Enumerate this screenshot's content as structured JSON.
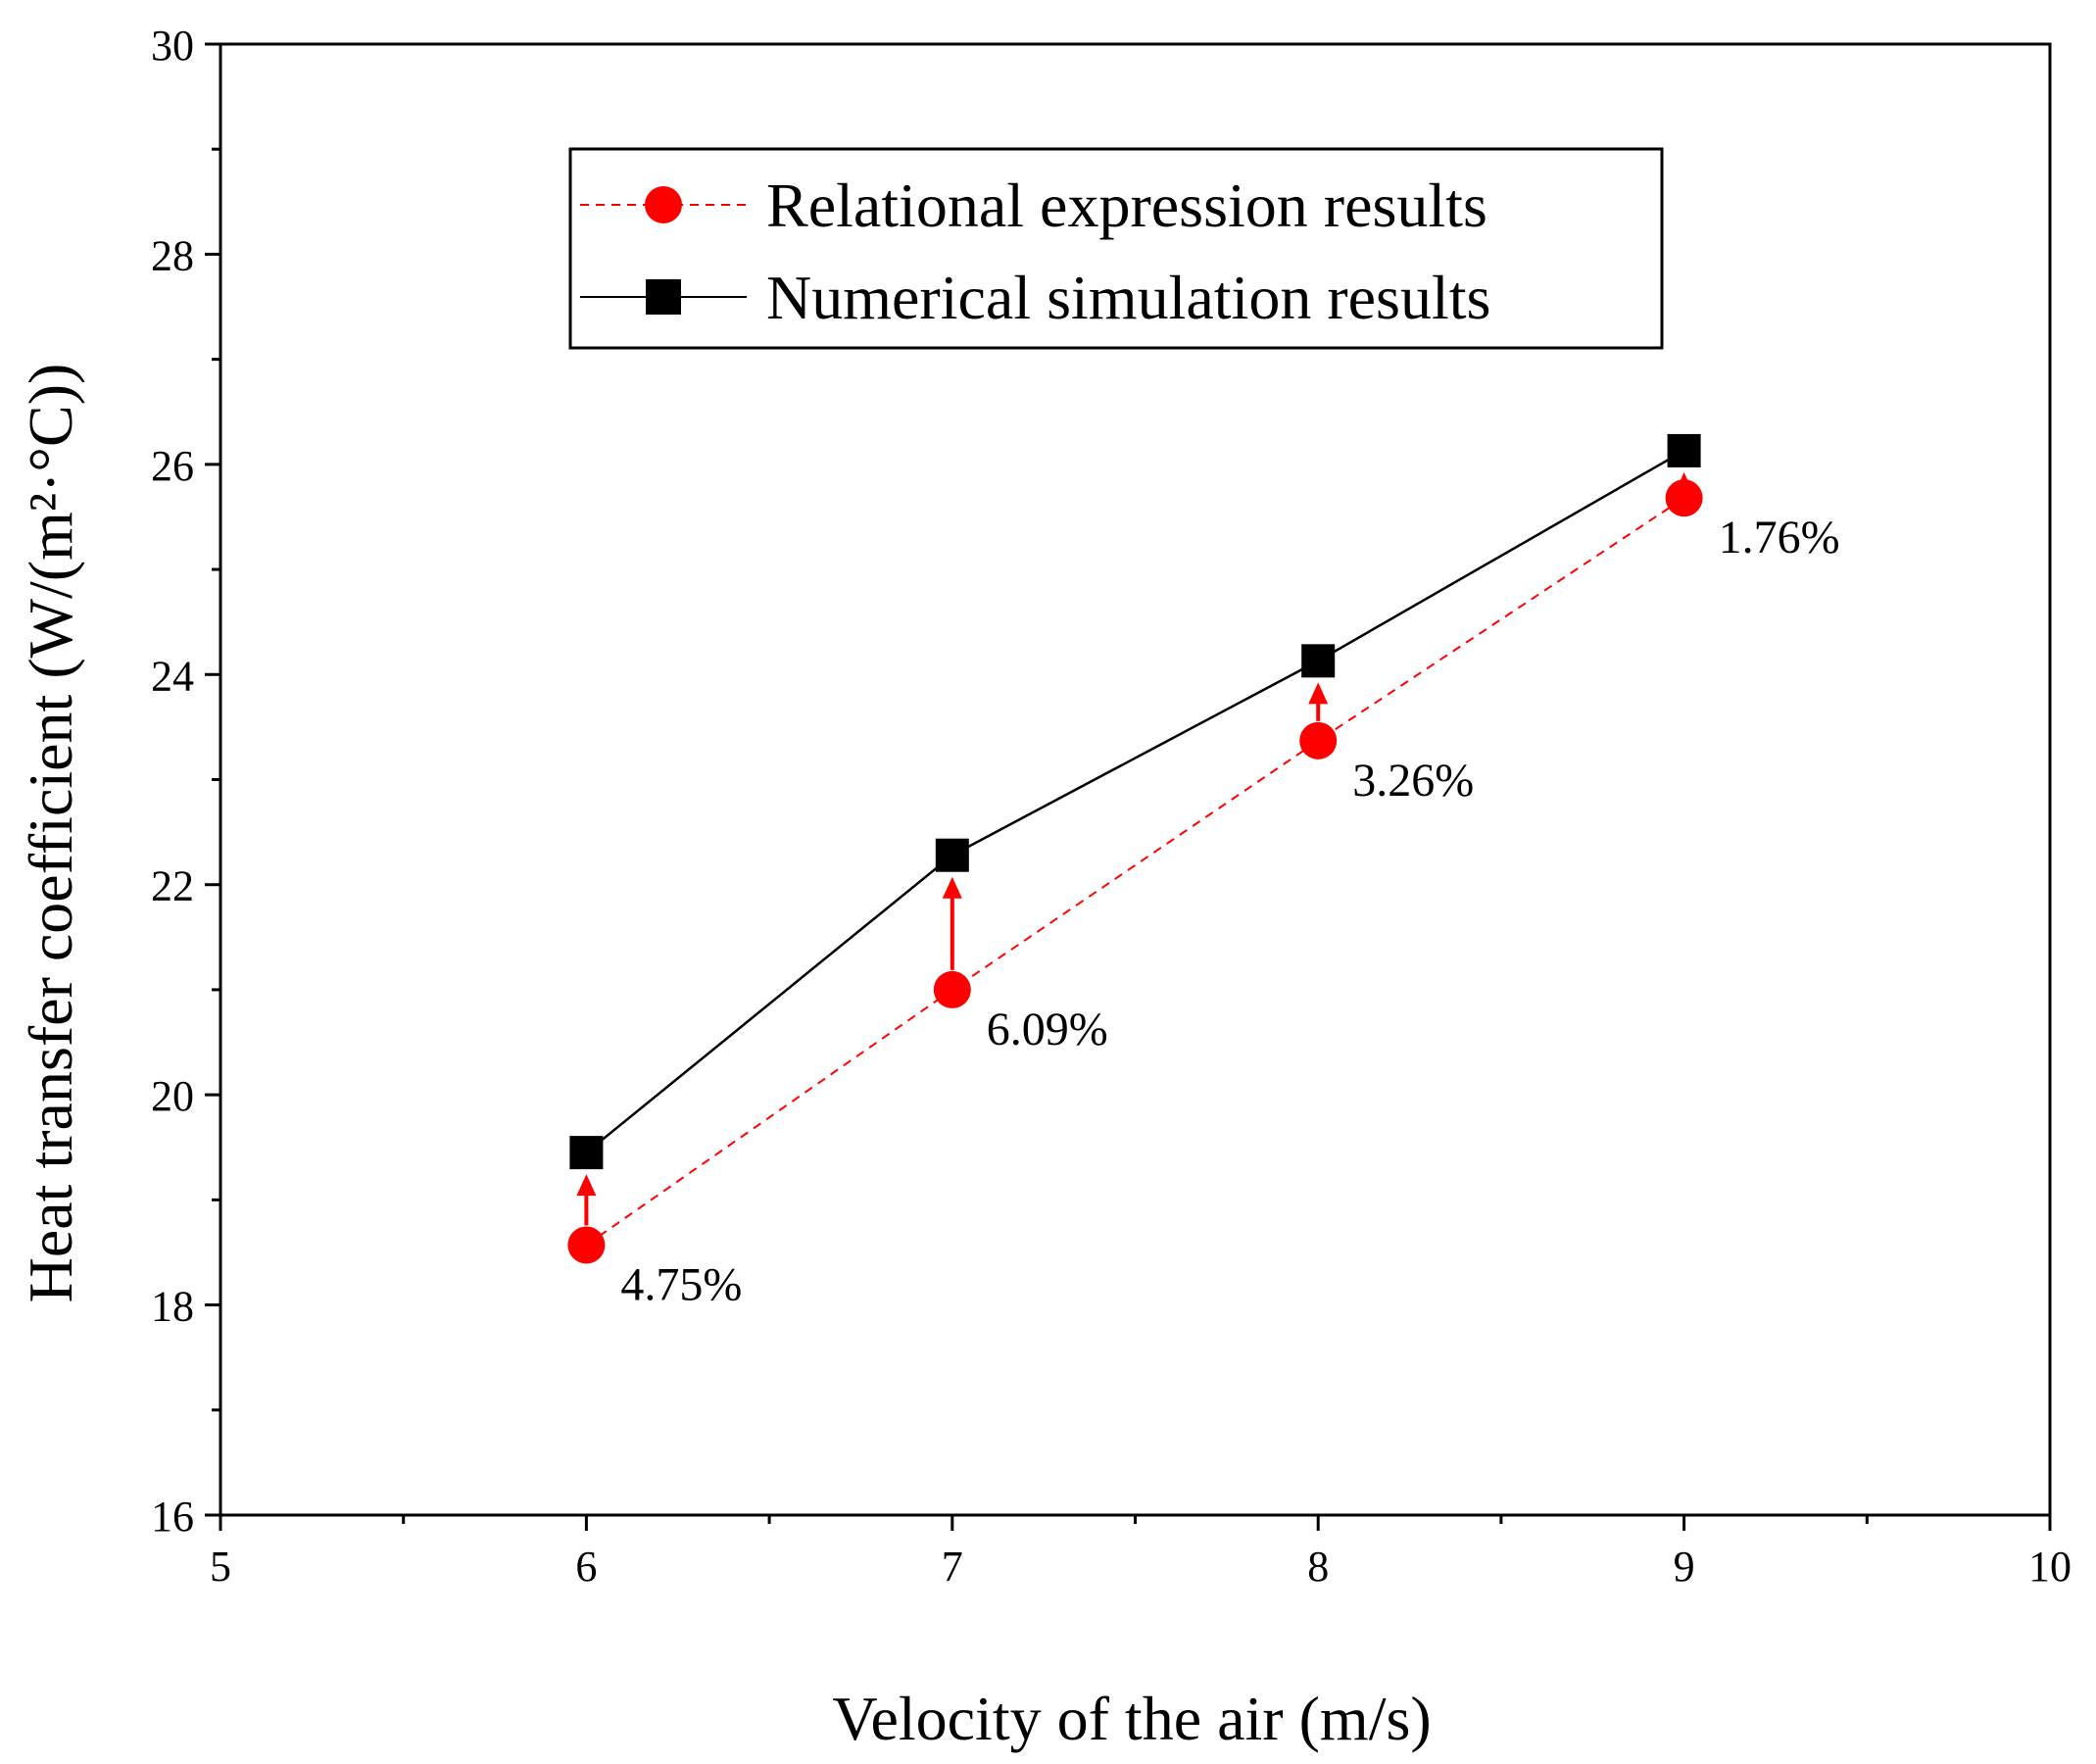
{
  "chart_data": {
    "type": "line",
    "xlabel": "Velocity of the air (m/s)",
    "ylabel": "Heat transfer coefficient (W/(m²·°C))",
    "xlim": [
      5,
      10
    ],
    "ylim": [
      16,
      30
    ],
    "xticks": [
      5,
      6,
      7,
      8,
      9,
      10
    ],
    "yticks": [
      16,
      18,
      20,
      22,
      24,
      26,
      28,
      30
    ],
    "grid": false,
    "legend_position": "top-center",
    "x": [
      6,
      7,
      8,
      9
    ],
    "series": [
      {
        "name": "Relational expression results",
        "values": [
          18.57,
          21.0,
          23.37,
          25.68
        ],
        "color": "#ff0000",
        "marker": "circle",
        "line_style": "dashed"
      },
      {
        "name": "Numerical simulation results",
        "values": [
          19.45,
          22.28,
          24.13,
          26.13
        ],
        "color": "#000000",
        "marker": "square",
        "line_style": "solid"
      }
    ],
    "annotations": [
      {
        "x": 6,
        "text": "4.75%"
      },
      {
        "x": 7,
        "text": "6.09%"
      },
      {
        "x": 8,
        "text": "3.26%"
      },
      {
        "x": 9,
        "text": "1.76%"
      }
    ],
    "arrow_color": "#ff0000"
  }
}
